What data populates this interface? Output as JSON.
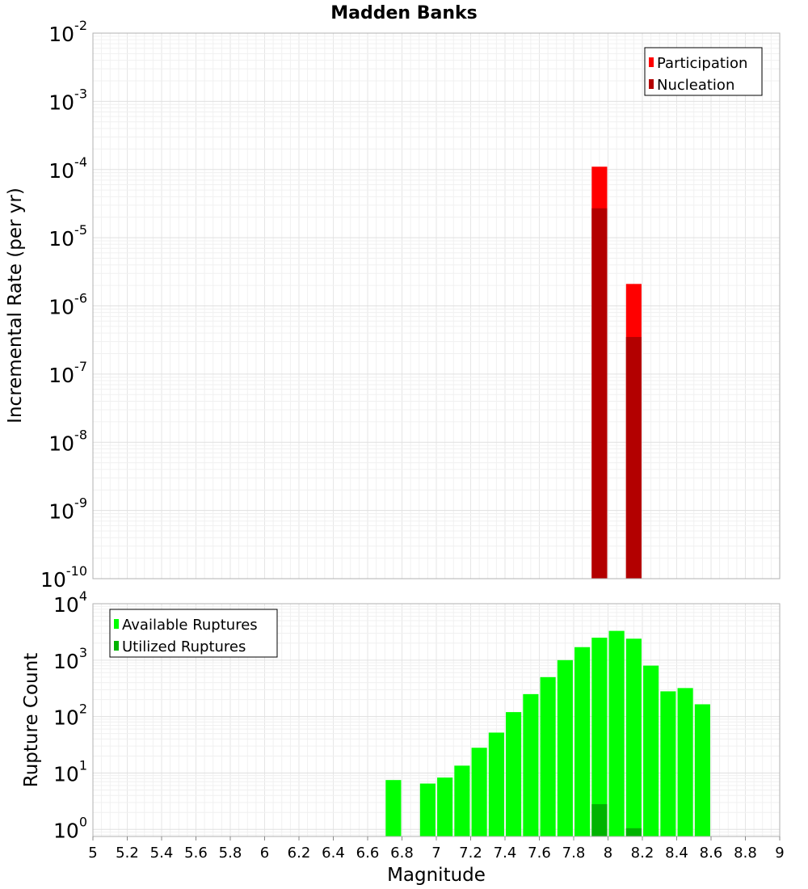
{
  "chart_data": [
    {
      "type": "bar",
      "title": "Madden Banks",
      "xlabel": "",
      "ylabel": "Incremental Rate (per yr)",
      "yscale": "log",
      "ylim": [
        1e-10,
        0.01
      ],
      "xlim": [
        5,
        9
      ],
      "grid": true,
      "legend_position": "top-right",
      "y_ticks": [
        {
          "base": "10",
          "exp": "-10"
        },
        {
          "base": "10",
          "exp": "-9"
        },
        {
          "base": "10",
          "exp": "-8"
        },
        {
          "base": "10",
          "exp": "-7"
        },
        {
          "base": "10",
          "exp": "-6"
        },
        {
          "base": "10",
          "exp": "-5"
        },
        {
          "base": "10",
          "exp": "-4"
        },
        {
          "base": "10",
          "exp": "-3"
        },
        {
          "base": "10",
          "exp": "-2"
        }
      ],
      "series": [
        {
          "name": "Participation",
          "color": "#ff0000",
          "x": [
            7.95,
            8.15
          ],
          "values": [
            0.00011,
            2.1e-06
          ]
        },
        {
          "name": "Nucleation",
          "color": "#b30000",
          "x": [
            7.95,
            8.15
          ],
          "values": [
            2.7e-05,
            3.5e-07
          ]
        }
      ]
    },
    {
      "type": "bar",
      "xlabel": "Magnitude",
      "ylabel": "Rupture Count",
      "yscale": "log",
      "ylim": [
        0.75,
        10000
      ],
      "xlim": [
        5,
        9
      ],
      "grid": true,
      "legend_position": "top-left",
      "y_ticks": [
        {
          "base": "10",
          "exp": "0"
        },
        {
          "base": "10",
          "exp": "1"
        },
        {
          "base": "10",
          "exp": "2"
        },
        {
          "base": "10",
          "exp": "3"
        },
        {
          "base": "10",
          "exp": "4"
        }
      ],
      "x_tick_labels": [
        "5",
        "5.2",
        "5.4",
        "5.6",
        "5.8",
        "6",
        "6.2",
        "6.4",
        "6.6",
        "6.8",
        "7",
        "7.2",
        "7.4",
        "7.6",
        "7.8",
        "8",
        "8.2",
        "8.4",
        "8.6",
        "8.8",
        "9"
      ],
      "series": [
        {
          "name": "Available Ruptures",
          "color": "#00ff00",
          "x": [
            6.75,
            6.95,
            7.05,
            7.15,
            7.25,
            7.35,
            7.45,
            7.55,
            7.65,
            7.75,
            7.85,
            7.95,
            8.05,
            8.15,
            8.25,
            8.35,
            8.45,
            8.55
          ],
          "values": [
            7.5,
            6.5,
            8.3,
            13.5,
            28,
            52,
            120,
            250,
            500,
            1000,
            1700,
            2500,
            3300,
            2400,
            800,
            280,
            320,
            165
          ]
        },
        {
          "name": "Utilized Ruptures",
          "color": "#00b300",
          "x": [
            7.95,
            8.15
          ],
          "values": [
            2.8,
            1.05
          ]
        }
      ]
    }
  ]
}
